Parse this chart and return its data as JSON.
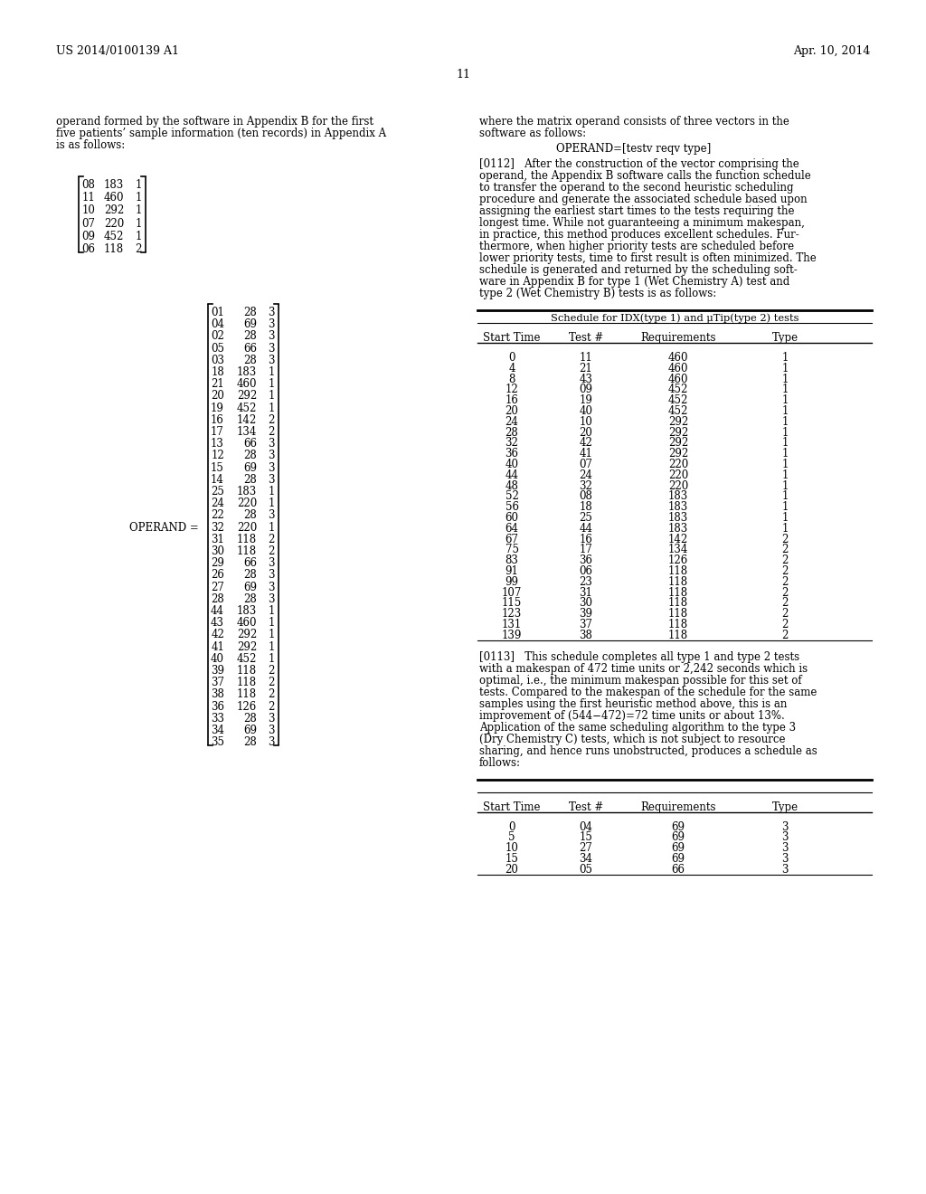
{
  "bg_color": "#ffffff",
  "header_left": "US 2014/0100139 A1",
  "header_right": "Apr. 10, 2014",
  "page_number": "11",
  "left_col_text1": [
    "operand formed by the software in Appendix B for the first",
    "five patients’ sample information (ten records) in Appendix A",
    "is as follows:"
  ],
  "matrix1_rows": [
    [
      "08",
      "183",
      "1"
    ],
    [
      "11",
      "460",
      "1"
    ],
    [
      "10",
      "292",
      "1"
    ],
    [
      "07",
      "220",
      "1"
    ],
    [
      "09",
      "452",
      "1"
    ],
    [
      "06",
      "118",
      "2"
    ]
  ],
  "right_col_text1": [
    "where the matrix operand consists of three vectors in the",
    "software as follows:"
  ],
  "operand_line": "OPERAND=[testv reqv type]",
  "para0112": [
    "[0112]   After the construction of the vector comprising the",
    "operand, the Appendix B software calls the function schedule",
    "to transfer the operand to the second heuristic scheduling",
    "procedure and generate the associated schedule based upon",
    "assigning the earliest start times to the tests requiring the",
    "longest time. While not guaranteeing a minimum makespan,",
    "in practice, this method produces excellent schedules. Fur-",
    "thermore, when higher priority tests are scheduled before",
    "lower priority tests, time to first result is often minimized. The",
    "schedule is generated and returned by the scheduling soft-",
    "ware in Appendix B for type 1 (Wet Chemistry A) test and",
    "type 2 (Wet Chemistry B) tests is as follows:"
  ],
  "table1_title": "Schedule for IDX(type 1) and μTip(type 2) tests",
  "table1_headers": [
    "Start Time",
    "Test #",
    "Requirements",
    "Type"
  ],
  "table1_rows": [
    [
      "0",
      "11",
      "460",
      "1"
    ],
    [
      "4",
      "21",
      "460",
      "1"
    ],
    [
      "8",
      "43",
      "460",
      "1"
    ],
    [
      "12",
      "09",
      "452",
      "1"
    ],
    [
      "16",
      "19",
      "452",
      "1"
    ],
    [
      "20",
      "40",
      "452",
      "1"
    ],
    [
      "24",
      "10",
      "292",
      "1"
    ],
    [
      "28",
      "20",
      "292",
      "1"
    ],
    [
      "32",
      "42",
      "292",
      "1"
    ],
    [
      "36",
      "41",
      "292",
      "1"
    ],
    [
      "40",
      "07",
      "220",
      "1"
    ],
    [
      "44",
      "24",
      "220",
      "1"
    ],
    [
      "48",
      "32",
      "220",
      "1"
    ],
    [
      "52",
      "08",
      "183",
      "1"
    ],
    [
      "56",
      "18",
      "183",
      "1"
    ],
    [
      "60",
      "25",
      "183",
      "1"
    ],
    [
      "64",
      "44",
      "183",
      "1"
    ],
    [
      "67",
      "16",
      "142",
      "2"
    ],
    [
      "75",
      "17",
      "134",
      "2"
    ],
    [
      "83",
      "36",
      "126",
      "2"
    ],
    [
      "91",
      "06",
      "118",
      "2"
    ],
    [
      "99",
      "23",
      "118",
      "2"
    ],
    [
      "107",
      "31",
      "118",
      "2"
    ],
    [
      "115",
      "30",
      "118",
      "2"
    ],
    [
      "123",
      "39",
      "118",
      "2"
    ],
    [
      "131",
      "37",
      "118",
      "2"
    ],
    [
      "139",
      "38",
      "118",
      "2"
    ]
  ],
  "operand_label": "OPERAND =",
  "matrix2_rows": [
    [
      "01",
      "28",
      "3"
    ],
    [
      "04",
      "69",
      "3"
    ],
    [
      "02",
      "28",
      "3"
    ],
    [
      "05",
      "66",
      "3"
    ],
    [
      "03",
      "28",
      "3"
    ],
    [
      "18",
      "183",
      "1"
    ],
    [
      "21",
      "460",
      "1"
    ],
    [
      "20",
      "292",
      "1"
    ],
    [
      "19",
      "452",
      "1"
    ],
    [
      "16",
      "142",
      "2"
    ],
    [
      "17",
      "134",
      "2"
    ],
    [
      "13",
      "66",
      "3"
    ],
    [
      "12",
      "28",
      "3"
    ],
    [
      "15",
      "69",
      "3"
    ],
    [
      "14",
      "28",
      "3"
    ],
    [
      "25",
      "183",
      "1"
    ],
    [
      "24",
      "220",
      "1"
    ],
    [
      "22",
      "28",
      "3"
    ],
    [
      "32",
      "220",
      "1"
    ],
    [
      "31",
      "118",
      "2"
    ],
    [
      "30",
      "118",
      "2"
    ],
    [
      "29",
      "66",
      "3"
    ],
    [
      "26",
      "28",
      "3"
    ],
    [
      "27",
      "69",
      "3"
    ],
    [
      "28",
      "28",
      "3"
    ],
    [
      "44",
      "183",
      "1"
    ],
    [
      "43",
      "460",
      "1"
    ],
    [
      "42",
      "292",
      "1"
    ],
    [
      "41",
      "292",
      "1"
    ],
    [
      "40",
      "452",
      "1"
    ],
    [
      "39",
      "118",
      "2"
    ],
    [
      "37",
      "118",
      "2"
    ],
    [
      "38",
      "118",
      "2"
    ],
    [
      "36",
      "126",
      "2"
    ],
    [
      "33",
      "28",
      "3"
    ],
    [
      "34",
      "69",
      "3"
    ],
    [
      "35",
      "28",
      "3"
    ]
  ],
  "para0113": [
    "[0113]   This schedule completes all type 1 and type 2 tests",
    "with a makespan of 472 time units or 2,242 seconds which is",
    "optimal, i.e., the minimum makespan possible for this set of",
    "tests. Compared to the makespan of the schedule for the same",
    "samples using the first heuristic method above, this is an",
    "improvement of (544−472)=72 time units or about 13%.",
    "Application of the same scheduling algorithm to the type 3",
    "(Dry Chemistry C) tests, which is not subject to resource",
    "sharing, and hence runs unobstructed, produces a schedule as",
    "follows:"
  ],
  "table2_headers": [
    "Start Time",
    "Test #",
    "Requirements",
    "Type"
  ],
  "table2_rows": [
    [
      "0",
      "04",
      "69",
      "3"
    ],
    [
      "5",
      "15",
      "69",
      "3"
    ],
    [
      "10",
      "27",
      "69",
      "3"
    ],
    [
      "15",
      "34",
      "69",
      "3"
    ],
    [
      "20",
      "05",
      "66",
      "3"
    ]
  ]
}
